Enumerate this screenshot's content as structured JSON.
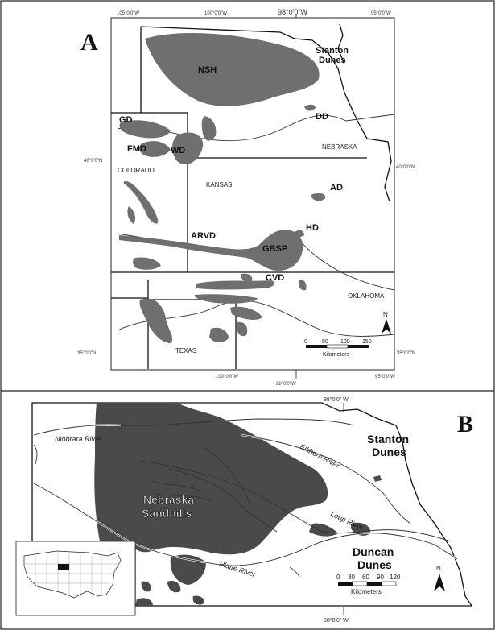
{
  "panel_a": {
    "letter": "A",
    "labels": {
      "nsh": "NSH",
      "stanton": "Stanton",
      "dunes": "Dunes",
      "dd": "DD",
      "gd": "GD",
      "fmd": "FMD",
      "wd": "WD",
      "ad": "AD",
      "hd": "HD",
      "arvd": "ARVD",
      "gbsp": "GBSP",
      "cvd": "CVD"
    },
    "states": {
      "nebraska": "NEBRASKA",
      "colorado": "COLORADO",
      "kansas": "KANSAS",
      "oklahoma": "OKLAHOMA",
      "texas": "TEXAS"
    },
    "coords": {
      "top_left": "105°0'0\"W",
      "top_mid": "100°0'0\"W",
      "top_main": "98°0'0\"W",
      "top_right": "95°0'0\"W",
      "left_40": "40°0'0\"N",
      "right_40": "40°0'0\"N",
      "left_35": "35°0'0\"N",
      "right_35": "35°0'0\"N",
      "bottom_mid": "100°0'0\"W",
      "bottom_main": "98°0'0\"W",
      "bottom_right": "95°0'0\"W"
    },
    "scale": {
      "ticks": [
        "0",
        "50",
        "100",
        "150"
      ],
      "unit": "Kilometers"
    },
    "north": "N"
  },
  "panel_b": {
    "letter": "B",
    "labels": {
      "sandhills_1": "Nebraska",
      "sandhills_2": "Sandhills",
      "stanton": "Stanton",
      "stanton_2": "Dunes",
      "duncan": "Duncan",
      "duncan_2": "Dunes"
    },
    "rivers": {
      "niobrara": "Niobrara River",
      "elkhorn": "Elkhorn River",
      "loup": "Loup River",
      "platte": "Platte River"
    },
    "coords": {
      "top": "98°0'0\" W",
      "bottom": "98°0'0\" W"
    },
    "scale": {
      "ticks": [
        "0",
        "30",
        "60",
        "90",
        "120"
      ],
      "unit": "Kilometers"
    },
    "north": "N"
  },
  "colors": {
    "dune_fill": "#6f6f6f",
    "dark_dune_fill": "#4a4a4a",
    "border": "#111111"
  }
}
